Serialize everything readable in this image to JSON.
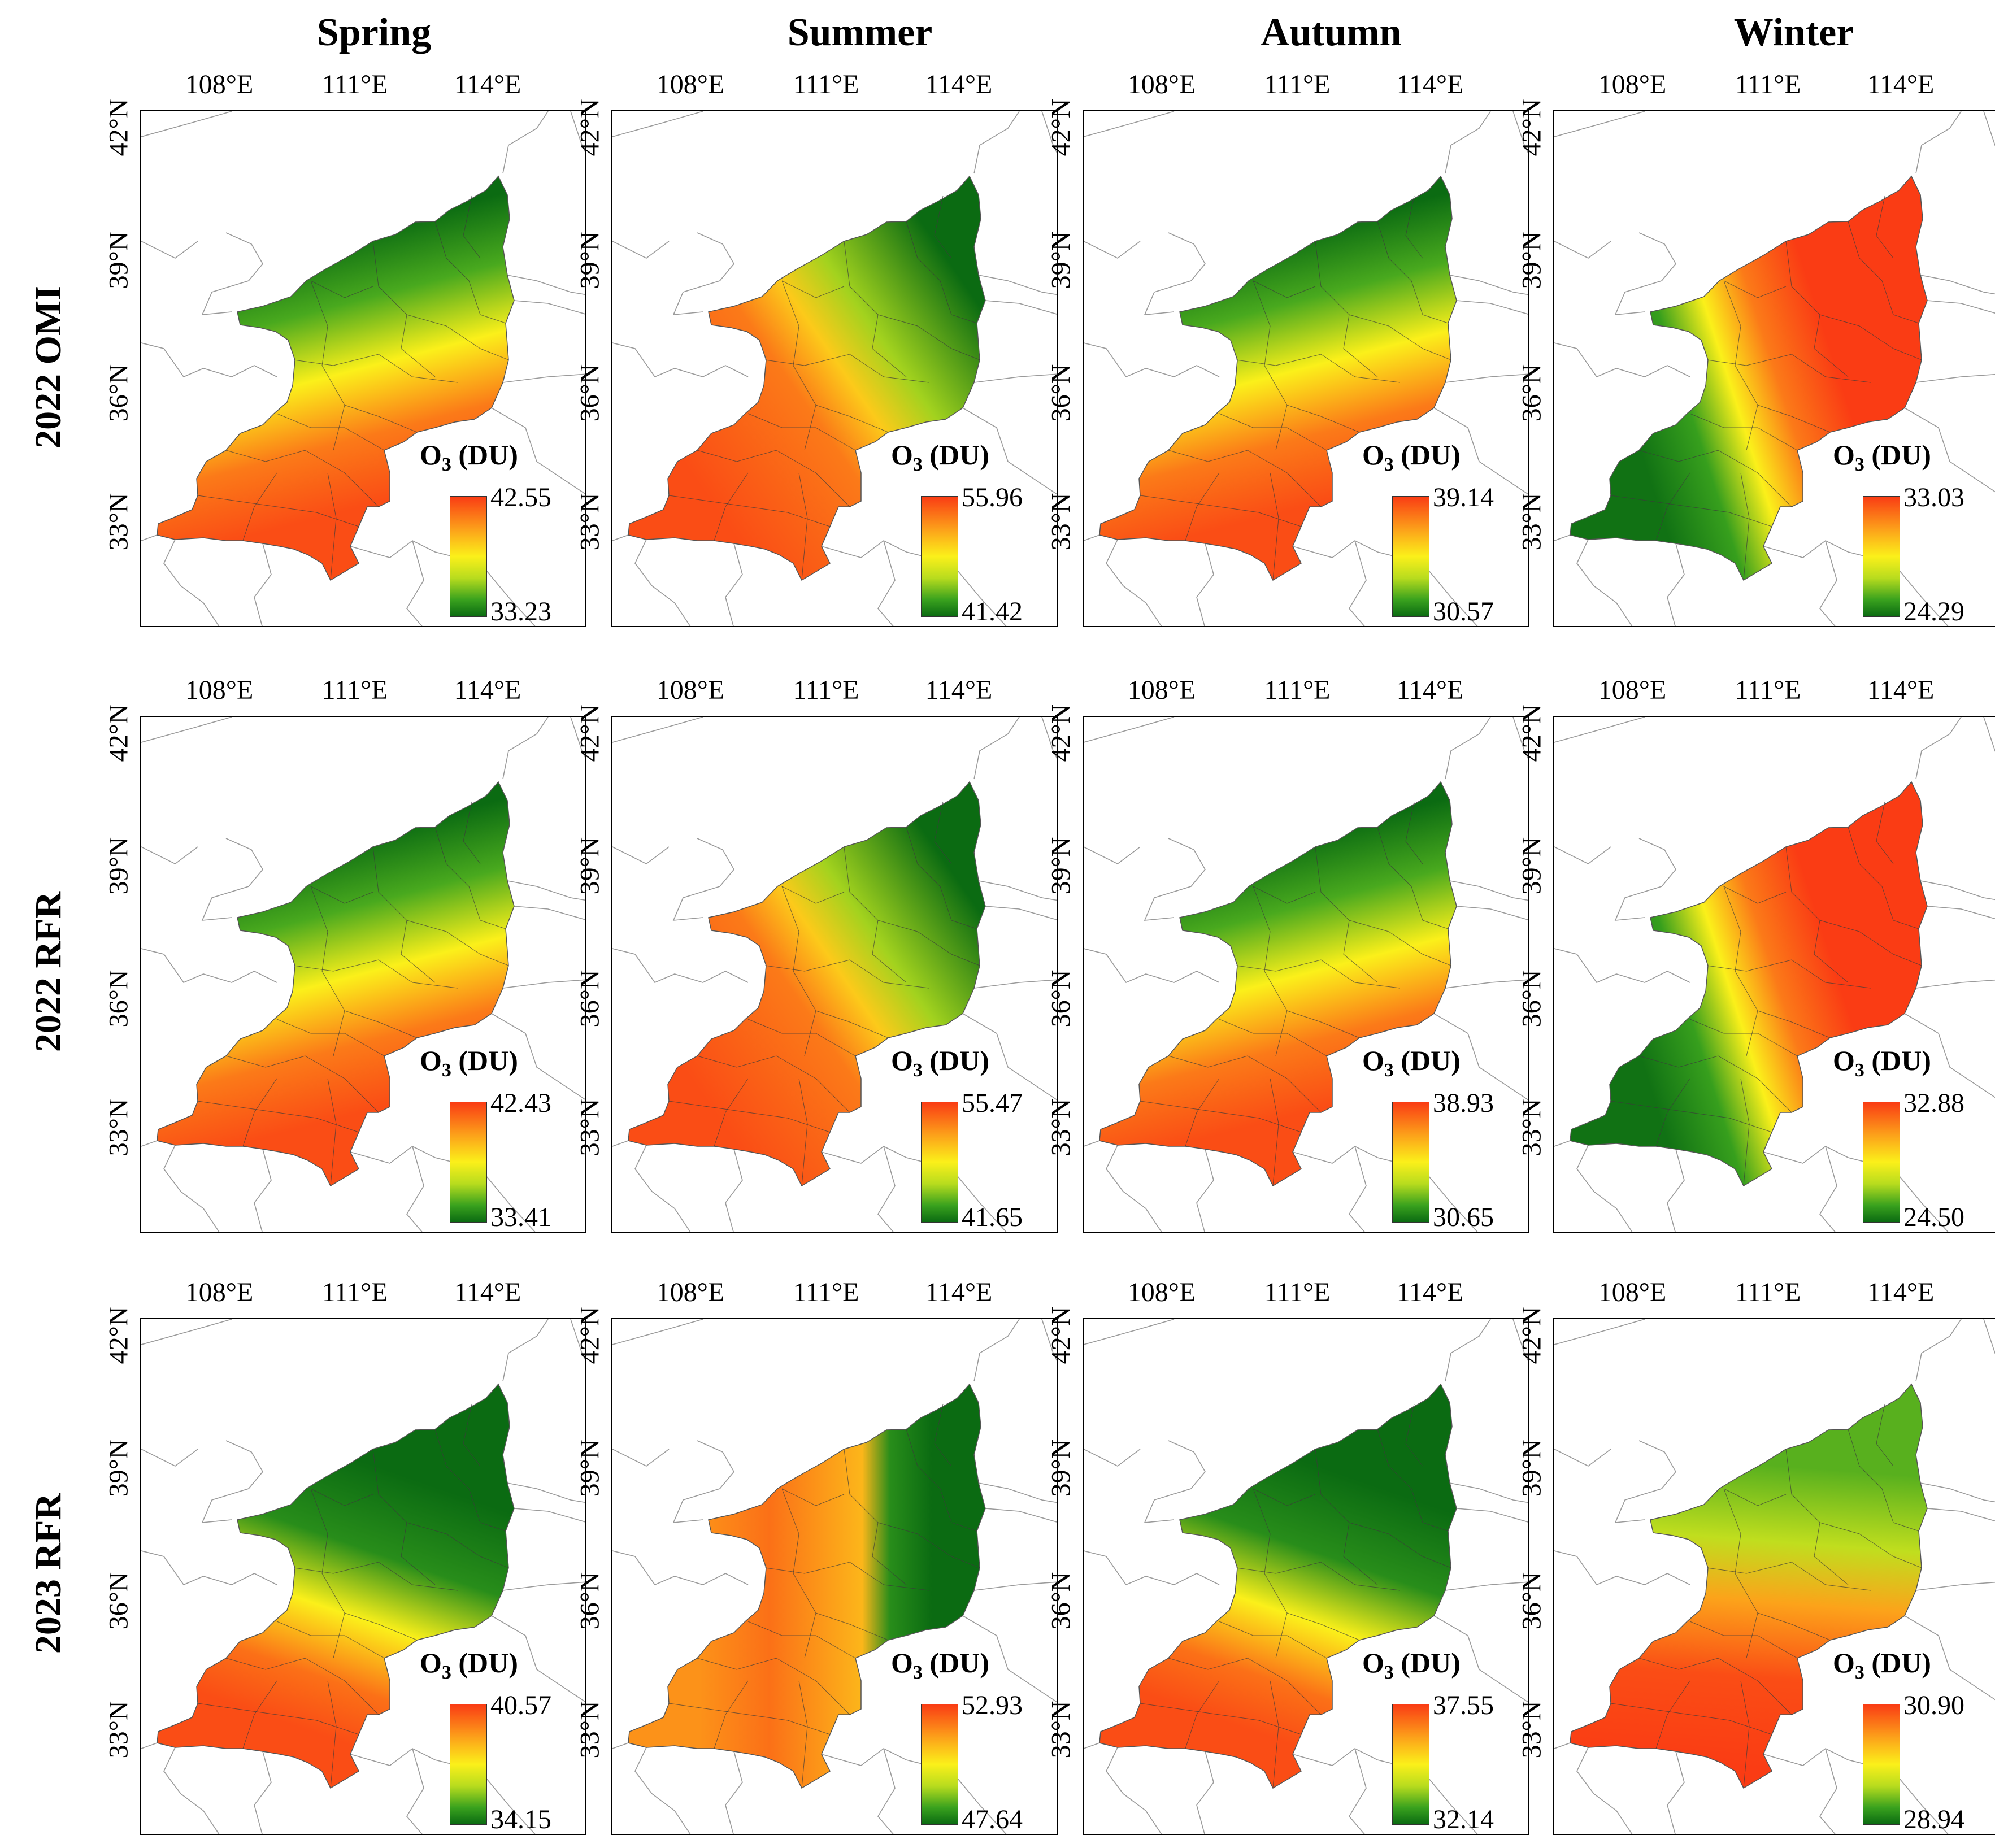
{
  "columns": [
    "Spring",
    "Summer",
    "Autumn",
    "Winter"
  ],
  "rows": [
    "2022 OMI",
    "2022 RFR",
    "2023 RFR"
  ],
  "lon_ticks": [
    "108°E",
    "111°E",
    "114°E"
  ],
  "lat_ticks": [
    "42°N",
    "39°N",
    "36°N",
    "33°N"
  ],
  "legend_title_main": "O",
  "legend_title_sub": "3",
  "legend_title_unit": " (DU)",
  "colormap": {
    "low": "#0b6b12",
    "mid": "#fbf01a",
    "high": "#fa3c14"
  },
  "panels": [
    [
      {
        "max": "42.55",
        "min": "33.23"
      },
      {
        "max": "55.96",
        "min": "41.42"
      },
      {
        "max": "39.14",
        "min": "30.57"
      },
      {
        "max": "33.03",
        "min": "24.29"
      }
    ],
    [
      {
        "max": "42.43",
        "min": "33.41"
      },
      {
        "max": "55.47",
        "min": "41.65"
      },
      {
        "max": "38.93",
        "min": "30.65"
      },
      {
        "max": "32.88",
        "min": "24.50"
      }
    ],
    [
      {
        "max": "40.57",
        "min": "34.15"
      },
      {
        "max": "52.93",
        "min": "47.64"
      },
      {
        "max": "37.55",
        "min": "32.14"
      },
      {
        "max": "30.90",
        "min": "28.94"
      }
    ]
  ]
}
